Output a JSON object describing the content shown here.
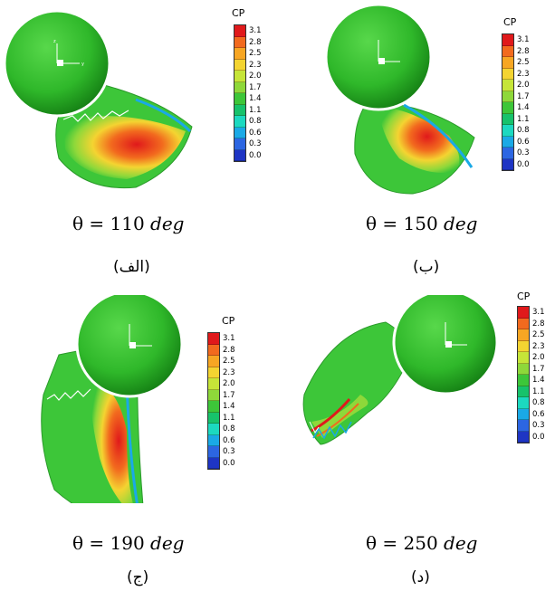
{
  "legend": {
    "title": "CP",
    "levels": [
      "3.1",
      "2.8",
      "2.5",
      "2.3",
      "2.0",
      "1.7",
      "1.4",
      "1.1",
      "0.8",
      "0.6",
      "0.3",
      "0.0"
    ],
    "colors": [
      "#e0191b",
      "#f26a1e",
      "#f7a623",
      "#f4d431",
      "#c6e538",
      "#8ed83a",
      "#3dc639",
      "#17c26b",
      "#1cd9c0",
      "#1aa9e6",
      "#2c66e2",
      "#1e35c4"
    ]
  },
  "axes_labels": {
    "z": "z",
    "y": "y"
  },
  "panels": [
    {
      "theta_value": "θ = 110",
      "unit": "deg",
      "caption": "(الف)"
    },
    {
      "theta_value": "θ = 150",
      "unit": "deg",
      "caption": "(ب)"
    },
    {
      "theta_value": "θ = 190",
      "unit": "deg",
      "caption": "(ج)"
    },
    {
      "theta_value": "θ = 250",
      "unit": "deg",
      "caption": "(د)"
    }
  ]
}
